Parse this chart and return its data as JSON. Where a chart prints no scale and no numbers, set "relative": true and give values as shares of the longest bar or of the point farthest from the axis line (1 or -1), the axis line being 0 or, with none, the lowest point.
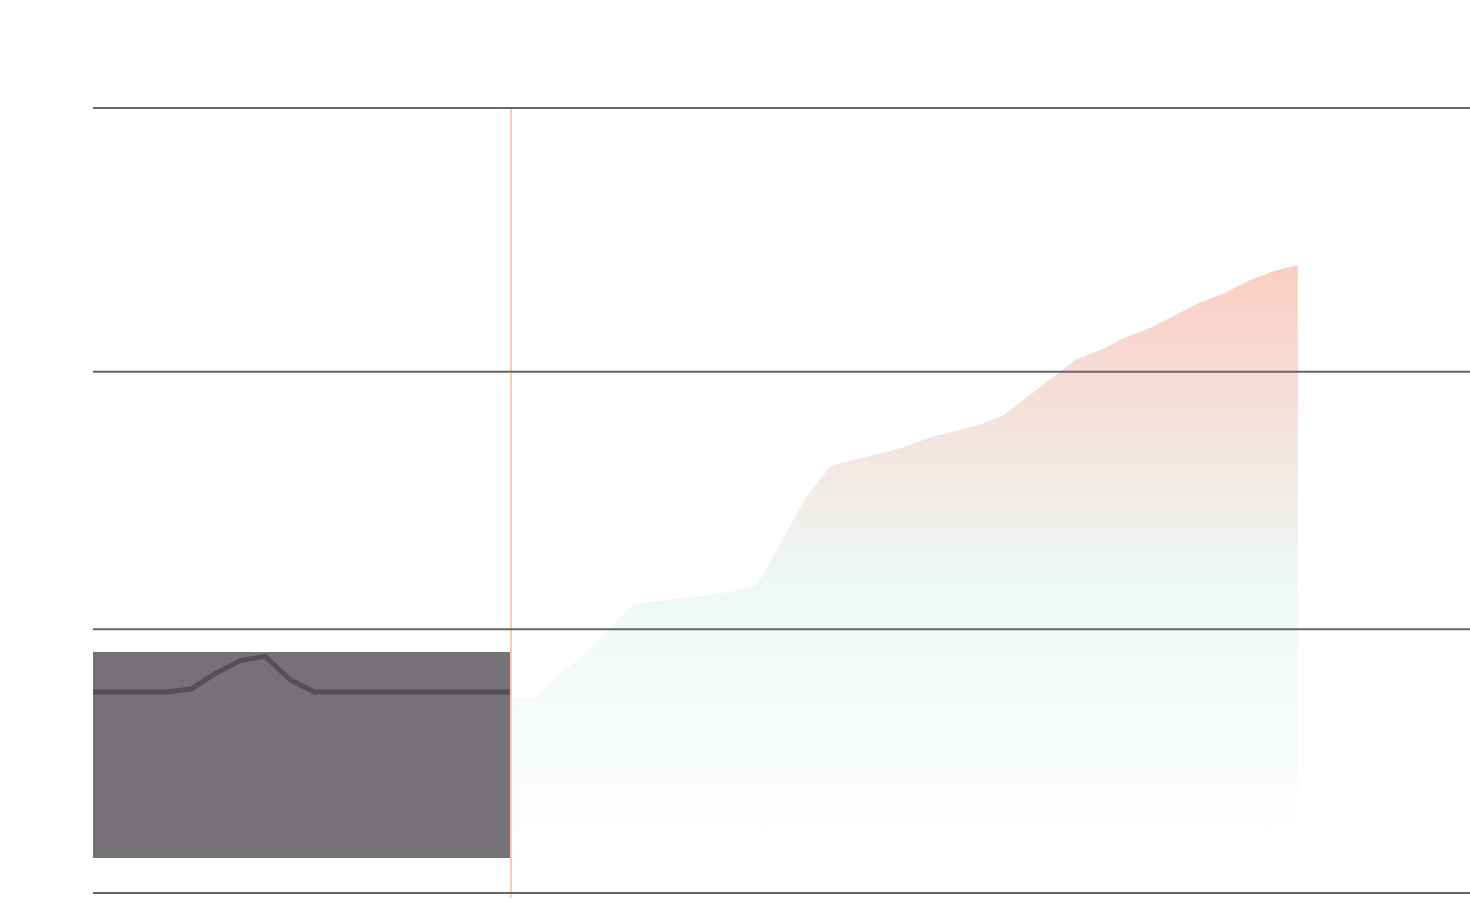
{
  "chart_data": {
    "type": "area",
    "relative": true,
    "legend": false,
    "marker": "none",
    "categories": [
      null,
      null,
      null,
      null,
      null,
      null,
      null,
      null,
      null,
      null,
      null,
      null,
      null,
      null,
      null,
      null,
      null,
      null,
      null,
      null,
      null,
      null,
      null,
      null,
      null,
      null,
      null,
      null,
      null,
      null,
      null,
      null,
      null,
      null,
      null,
      null,
      null,
      null,
      null,
      null,
      null,
      null,
      null,
      null,
      null,
      null,
      null,
      null,
      null,
      null,
      null,
      null,
      null,
      null,
      null,
      null,
      null
    ],
    "series": [
      {
        "type": "line",
        "color": "#545056",
        "values": [
          0.32,
          0.32,
          0.32,
          0.32,
          0.325,
          0.35,
          0.37,
          0.377,
          0.34,
          0.32,
          0.32,
          0.32,
          0.32,
          0.32,
          0.32,
          0.32,
          0.32,
          0.32,
          null,
          null,
          null,
          null,
          null,
          null,
          null,
          null,
          null,
          null,
          null,
          null,
          null,
          null,
          null,
          null,
          null,
          null,
          null,
          null,
          null,
          null,
          null,
          null,
          null,
          null,
          null,
          null,
          null,
          null,
          null,
          null,
          null,
          null,
          null,
          null,
          null,
          null,
          null
        ]
      },
      {
        "color": "#fcc9bb",
        "values": [
          null,
          null,
          null,
          null,
          null,
          null,
          null,
          null,
          null,
          null,
          null,
          null,
          null,
          null,
          null,
          null,
          null,
          0.31,
          0.31,
          0.35,
          0.38,
          0.42,
          0.46,
          0.465,
          0.47,
          0.475,
          0.48,
          0.49,
          0.56,
          0.63,
          0.68,
          0.69,
          0.7,
          0.71,
          0.725,
          0.735,
          0.745,
          0.76,
          0.79,
          0.82,
          0.85,
          0.865,
          0.885,
          0.9,
          0.92,
          0.94,
          0.955,
          0.975,
          0.99,
          1.0,
          null,
          null,
          null,
          null,
          null,
          null,
          null
        ]
      }
    ],
    "ref_lines": [
      {
        "axis": "y",
        "value": 0,
        "color": "#666666"
      },
      {
        "axis": "y",
        "value": 0.42,
        "color": "#666666"
      },
      {
        "axis": "y",
        "value": 0.83,
        "color": "#666666"
      },
      {
        "axis": "y",
        "value": 1.25,
        "color": "#666666"
      }
    ]
  }
}
